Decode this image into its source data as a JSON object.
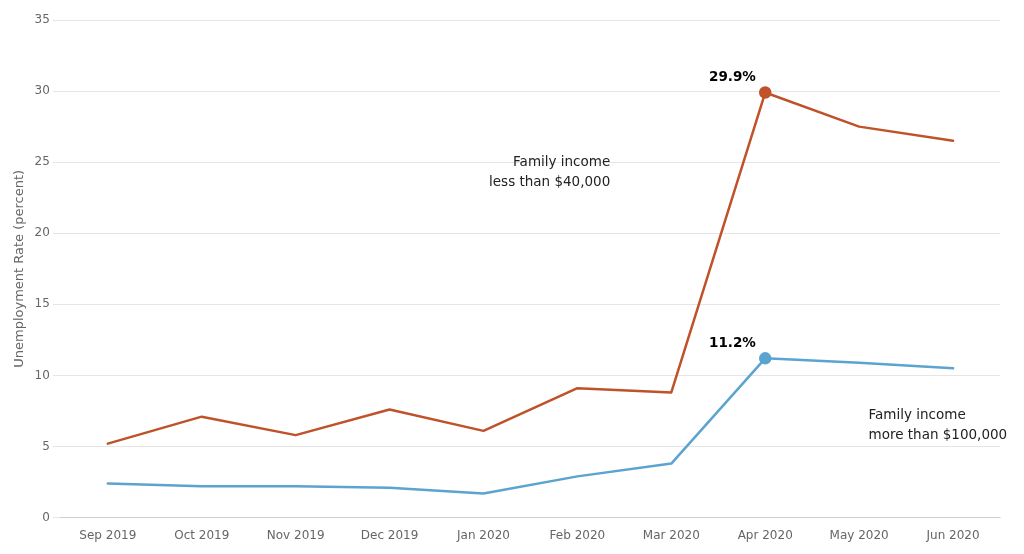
{
  "chart_data": {
    "type": "line",
    "categories": [
      "Sep 2019",
      "Oct 2019",
      "Nov 2019",
      "Dec 2019",
      "Jan 2020",
      "Feb 2020",
      "Mar 2020",
      "Apr 2020",
      "May 2020",
      "Jun 2020"
    ],
    "series": [
      {
        "name": "Family income\nless than $40,000",
        "color": "#C0522A",
        "values": [
          5.2,
          7.1,
          5.8,
          7.6,
          6.1,
          9.1,
          8.8,
          29.9,
          27.5,
          26.5
        ],
        "value_labels": [
          null,
          null,
          null,
          null,
          null,
          null,
          null,
          "29.9%",
          null,
          null
        ]
      },
      {
        "name": "Family income\nmore than $100,000",
        "color": "#5BA4CF",
        "values": [
          2.4,
          2.2,
          2.2,
          2.1,
          1.7,
          2.9,
          3.8,
          11.2,
          10.9,
          10.5
        ],
        "value_labels": [
          null,
          null,
          null,
          null,
          null,
          null,
          null,
          "11.2%",
          null,
          null
        ]
      }
    ],
    "y_label": "Unemployment Rate (percent)",
    "ylim": [
      0,
      35
    ],
    "yticks": [
      0,
      5,
      10,
      15,
      20,
      25,
      30,
      35
    ],
    "grid": true
  }
}
